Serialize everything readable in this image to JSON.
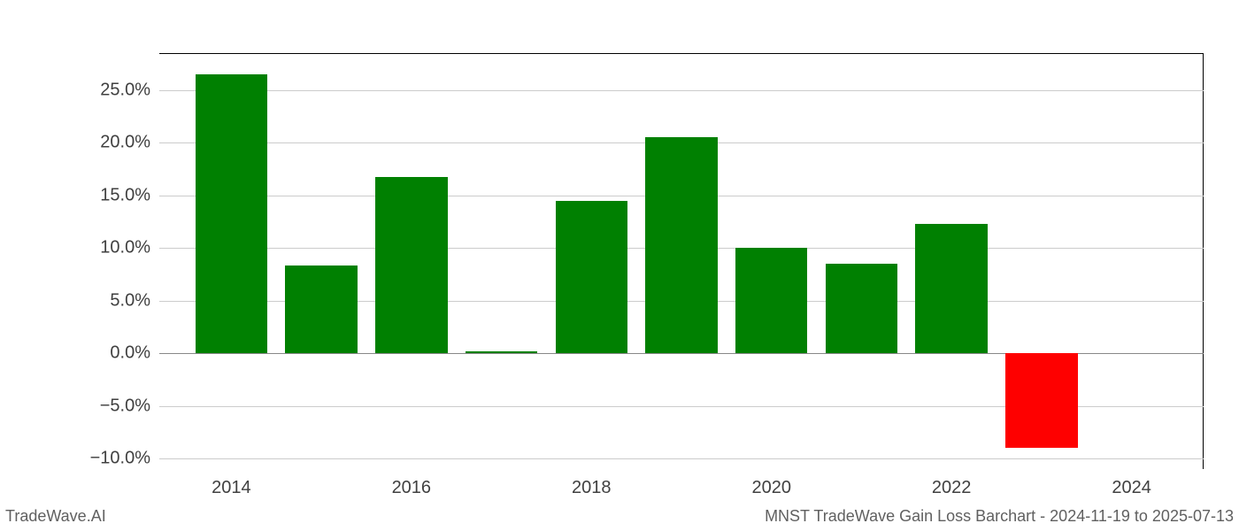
{
  "chart": {
    "type": "bar",
    "x_values": [
      2014,
      2015,
      2016,
      2017,
      2018,
      2019,
      2020,
      2021,
      2022,
      2023
    ],
    "y_values": [
      26.5,
      8.3,
      16.7,
      0.2,
      14.5,
      20.5,
      10.0,
      8.5,
      12.3,
      -9.0
    ],
    "bar_colors": [
      "#008001",
      "#008001",
      "#008001",
      "#008001",
      "#008001",
      "#008001",
      "#008001",
      "#008001",
      "#008001",
      "#fe0000"
    ],
    "x_ticks": [
      2014,
      2016,
      2018,
      2020,
      2022,
      2024
    ],
    "y_ticks": [
      -10,
      -5,
      0,
      5,
      10,
      15,
      20,
      25
    ],
    "y_tick_labels": [
      "−10.0%",
      "−5.0%",
      "0.0%",
      "5.0%",
      "10.0%",
      "15.0%",
      "20.0%",
      "25.0%"
    ],
    "y_min": -11,
    "y_max": 28.5,
    "x_min": 2013.2,
    "x_max": 2024.8,
    "bar_width": 0.8,
    "background_color": "#ffffff",
    "grid_color": "#cccccc",
    "axis_color": "#000000",
    "tick_font_size": 20,
    "tick_color": "#404040"
  },
  "footer": {
    "left": "TradeWave.AI",
    "right": "MNST TradeWave Gain Loss Barchart - 2024-11-19 to 2025-07-13"
  }
}
